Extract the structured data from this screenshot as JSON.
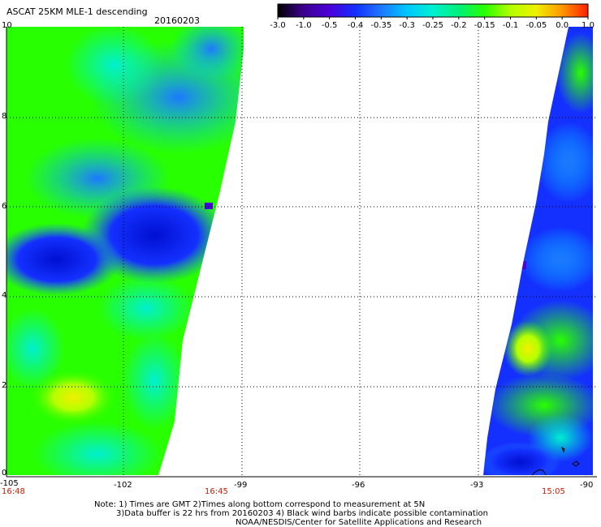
{
  "title": "ASCAT 25KM MLE-1 descending",
  "date": "20160203",
  "colorbar": {
    "labels": [
      "-3.0",
      "-1.0",
      "-0.5",
      "-0.4",
      "-0.35",
      "-0.3",
      "-0.25",
      "-0.2",
      "-0.15",
      "-0.1",
      "-0.05",
      "0.0",
      "1.0"
    ],
    "colors": [
      "#000000",
      "#3c0090",
      "#4a00d8",
      "#1430ff",
      "#1e78ff",
      "#00c8ff",
      "#00f0d0",
      "#00f07a",
      "#28ff00",
      "#b4ff00",
      "#f0f000",
      "#ff9600",
      "#ff1e00"
    ]
  },
  "axes": {
    "x_ticks": [
      "-105",
      "-102",
      "-99",
      "-96",
      "-93",
      "-90"
    ],
    "y_ticks": [
      "0",
      "2",
      "4",
      "6",
      "8",
      "10"
    ]
  },
  "times": [
    "16:48",
    "16:45",
    "15:05"
  ],
  "notes": [
    "Note: 1) Times are GMT 2)Times along bottom correspond to measurement at 5N",
    "3)Data buffer is 22 hrs from 20160203 4) Black wind barbs indicate possible contamination",
    "NOAA/NESDIS/Center for Satellite Applications and Research"
  ]
}
